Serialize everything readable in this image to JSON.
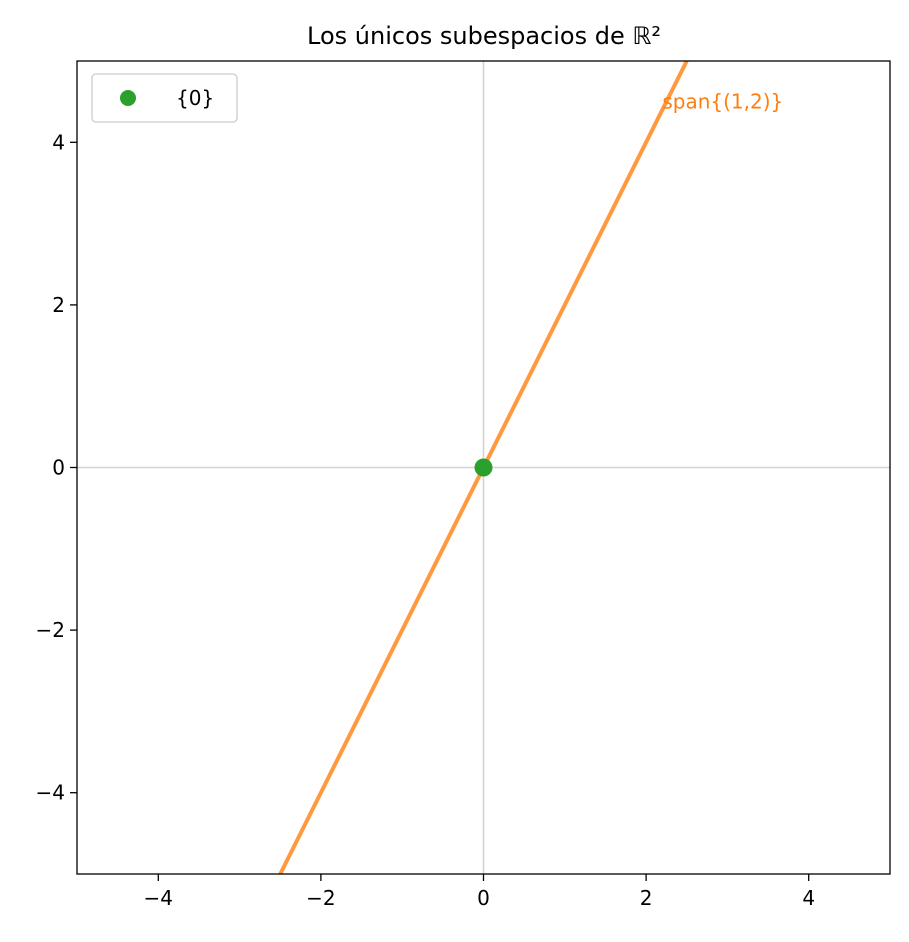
{
  "chart_data": {
    "type": "line",
    "title": "Los únicos subespacios de ℝ²",
    "xlabel": "",
    "ylabel": "",
    "xlim": [
      -5,
      5
    ],
    "ylim": [
      -5,
      5
    ],
    "x_ticks": [
      -4,
      -2,
      0,
      2,
      4
    ],
    "y_ticks": [
      -4,
      -2,
      0,
      2,
      4
    ],
    "x_tick_labels": [
      "−4",
      "−2",
      "0",
      "2",
      "4"
    ],
    "y_tick_labels": [
      "−4",
      "−2",
      "0",
      "2",
      "4"
    ],
    "grid": false,
    "axis_lines": {
      "x": 0,
      "y": 0,
      "color": "#d3d3d3"
    },
    "series": [
      {
        "name": "{0}",
        "kind": "scatter",
        "color": "#2ca02c",
        "points": [
          [
            0,
            0
          ]
        ]
      },
      {
        "kind": "line",
        "color": "#ff7f0e",
        "direction": [
          1,
          2
        ],
        "points": [
          [
            -2.5,
            -5
          ],
          [
            2.5,
            5
          ]
        ]
      }
    ],
    "annotations": [
      {
        "text": "span{(1,2)}",
        "x": 2.2,
        "y": 4.5,
        "color": "#ff7f0e"
      }
    ],
    "legend": {
      "position": "upper-left",
      "entries": [
        "{0}"
      ]
    }
  }
}
